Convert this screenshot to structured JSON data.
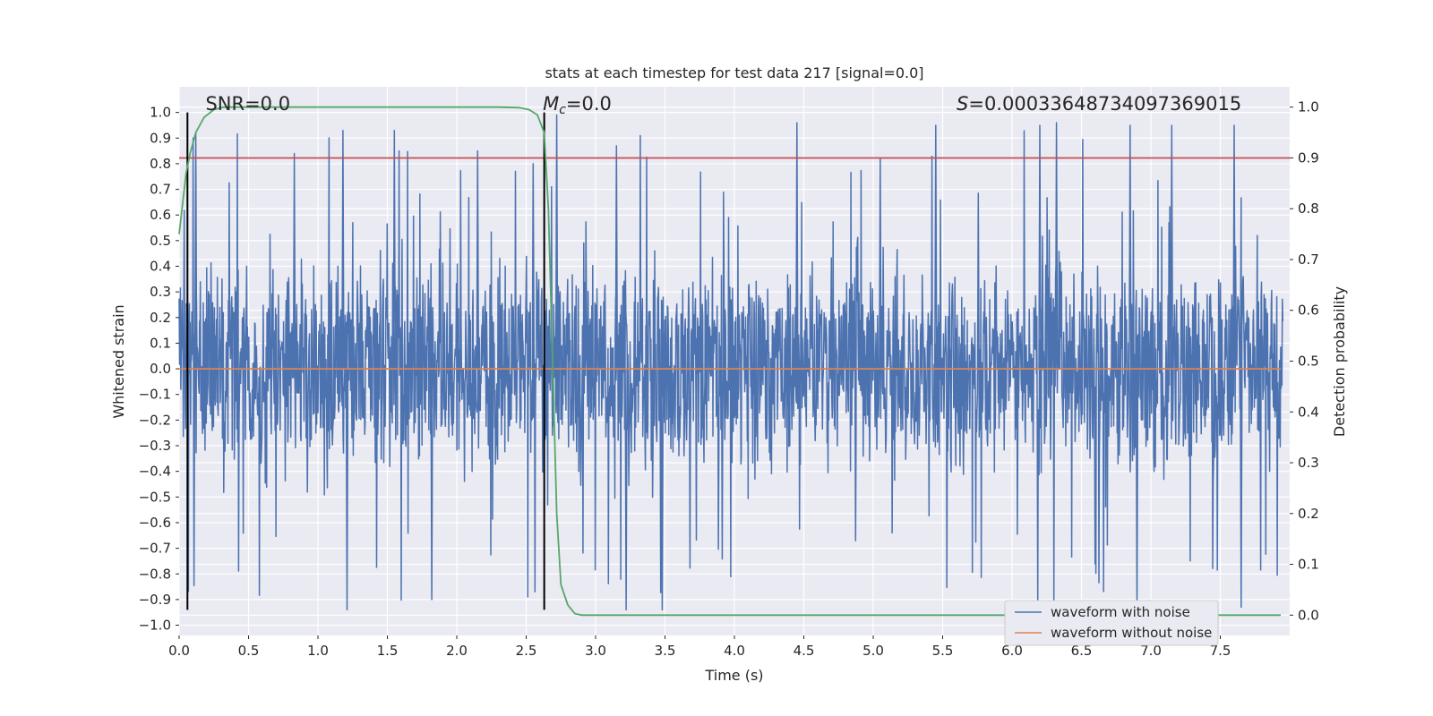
{
  "chart_data": {
    "type": "line",
    "title": "stats at each timestep for test data 217 [signal=0.0]",
    "xlabel": "Time (s)",
    "ylabel": "Whitened strain",
    "y2label": "Detection probability",
    "xlim": [
      0.0,
      8.0
    ],
    "ylim": [
      -1.04,
      1.1
    ],
    "y2lim": [
      -0.04,
      1.04
    ],
    "x_ticks": [
      0.0,
      0.5,
      1.0,
      1.5,
      2.0,
      2.5,
      3.0,
      3.5,
      4.0,
      4.5,
      5.0,
      5.5,
      6.0,
      6.5,
      7.0,
      7.5
    ],
    "x_tick_labels": [
      "0.0",
      "0.5",
      "1.0",
      "1.5",
      "2.0",
      "2.5",
      "3.0",
      "3.5",
      "4.0",
      "4.5",
      "5.0",
      "5.5",
      "6.0",
      "6.5",
      "7.0",
      "7.5"
    ],
    "y_ticks": [
      1.0,
      0.9,
      0.8,
      0.7,
      0.6,
      0.5,
      0.4,
      0.3,
      0.2,
      0.1,
      0.0,
      -0.1,
      -0.2,
      -0.3,
      -0.4,
      -0.5,
      -0.6,
      -0.7,
      -0.8,
      -0.9,
      -1.0
    ],
    "y_tick_labels": [
      "1.0",
      "0.9",
      "0.8",
      "0.7",
      "0.6",
      "0.5",
      "0.4",
      "0.3",
      "0.2",
      "0.1",
      "0.0",
      "−0.1",
      "−0.2",
      "−0.3",
      "−0.4",
      "−0.5",
      "−0.6",
      "−0.7",
      "−0.8",
      "−0.9",
      "−1.0"
    ],
    "y2_ticks": [
      1.0,
      0.9,
      0.8,
      0.7,
      0.6,
      0.5,
      0.4,
      0.3,
      0.2,
      0.1,
      0.0
    ],
    "y2_tick_labels": [
      "1.0",
      "0.9",
      "0.8",
      "0.7",
      "0.6",
      "0.5",
      "0.4",
      "0.3",
      "0.2",
      "0.1",
      "0.0"
    ],
    "grid": true,
    "legend_position": "bottom-right",
    "series": [
      {
        "name": "waveform with noise",
        "color": "#4c72b0",
        "axis": "left",
        "description": "dense whitened noise, mostly within ±0.4 with spikes up to ±1.0",
        "noise_core_abs": 0.4,
        "spike_max": 0.99,
        "spike_min": -0.94,
        "spike_peaks": [
          [
            0.12,
            0.92
          ],
          [
            0.83,
            0.84
          ],
          [
            1.18,
            0.93
          ],
          [
            1.55,
            0.93
          ],
          [
            2.15,
            0.85
          ],
          [
            2.55,
            0.8
          ],
          [
            2.72,
            0.99
          ],
          [
            3.15,
            0.87
          ],
          [
            4.45,
            0.96
          ],
          [
            5.05,
            0.82
          ],
          [
            5.45,
            0.95
          ],
          [
            6.2,
            0.95
          ],
          [
            6.32,
            0.96
          ],
          [
            6.85,
            0.95
          ],
          [
            7.15,
            0.95
          ],
          [
            7.6,
            0.95
          ],
          [
            1.21,
            -0.94
          ],
          [
            1.82,
            -0.9
          ],
          [
            3.22,
            -0.94
          ],
          [
            3.48,
            -0.94
          ],
          [
            6.9,
            -0.94
          ],
          [
            7.65,
            -0.93
          ]
        ]
      },
      {
        "name": "waveform without noise",
        "color": "#dd8452",
        "axis": "left",
        "x": [
          0.0,
          8.0
        ],
        "y": [
          0.0,
          0.0
        ]
      },
      {
        "name": "detection probability",
        "color": "#55a868",
        "axis": "right",
        "x": [
          0.0,
          0.05,
          0.08,
          0.12,
          0.18,
          0.25,
          0.32,
          0.4,
          0.5,
          1.0,
          1.5,
          2.0,
          2.3,
          2.45,
          2.52,
          2.58,
          2.63,
          2.66,
          2.69,
          2.72,
          2.75,
          2.8,
          2.85,
          2.9,
          3.0,
          8.0
        ],
        "y": [
          0.75,
          0.87,
          0.91,
          0.95,
          0.98,
          0.995,
          1.0,
          1.0,
          1.0,
          1.0,
          1.0,
          1.0,
          1.0,
          0.999,
          0.995,
          0.985,
          0.95,
          0.8,
          0.5,
          0.2,
          0.06,
          0.02,
          0.003,
          0.0,
          0.0,
          0.0
        ],
        "in_legend": false
      }
    ],
    "threshold": {
      "axis": "right",
      "value": 0.9,
      "color": "#c44e52"
    },
    "vlines": [
      {
        "x": 0.06,
        "ymin": -0.94,
        "ymax": 1.0,
        "color": "#000000"
      },
      {
        "x": 2.63,
        "ymin": -0.94,
        "ymax": 1.0,
        "color": "#000000"
      }
    ],
    "annotations": [
      {
        "name": "snr-annotation",
        "plain": "SNR=0.0",
        "x": 0.19,
        "y": 1.01
      },
      {
        "name": "mc-annotation",
        "var": "M",
        "sub": "c",
        "rest": "=0.0",
        "x": 2.62,
        "y": 1.01
      },
      {
        "name": "s-annotation",
        "var": "S",
        "rest": "=0.00033648734097369015",
        "x": 5.6,
        "y": 1.01
      }
    ],
    "legend": [
      "waveform with noise",
      "waveform without noise"
    ]
  },
  "colors": {
    "axes_bg": "#eaeaf2",
    "grid": "#ffffff",
    "text": "#262626"
  }
}
